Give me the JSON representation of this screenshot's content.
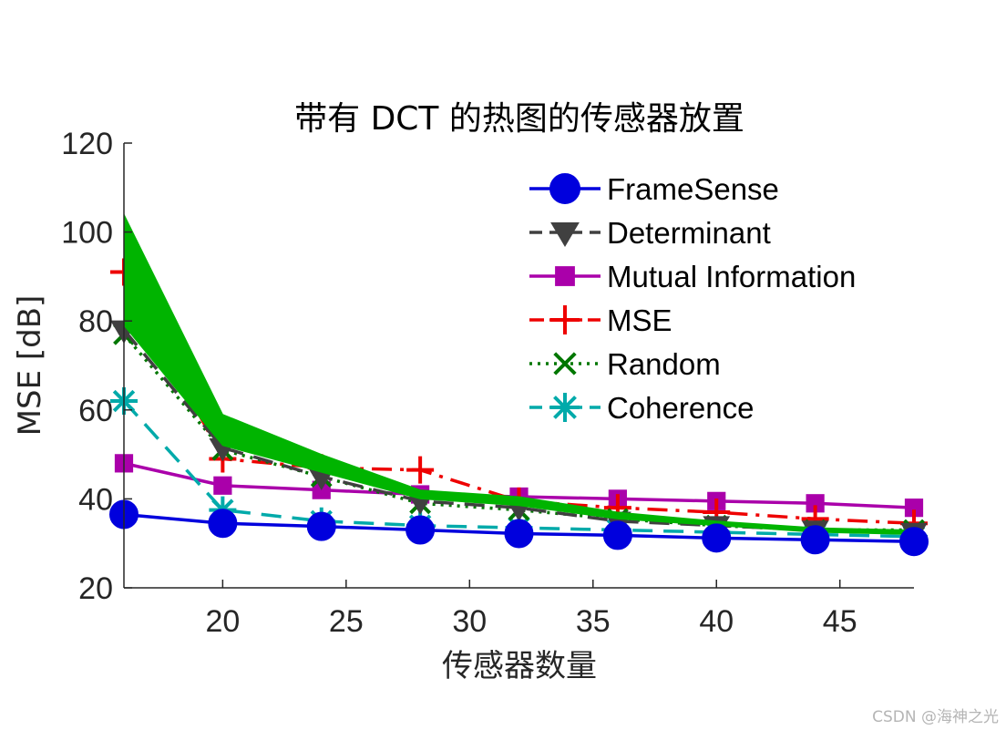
{
  "chart_data": {
    "type": "line",
    "title": "带有 DCT 的热图的传感器放置",
    "xlabel": "传感器数量",
    "ylabel": "MSE [dB]",
    "xlim": [
      16,
      48
    ],
    "ylim": [
      20,
      120
    ],
    "xticks": [
      20,
      25,
      30,
      35,
      40,
      45
    ],
    "yticks": [
      20,
      40,
      60,
      80,
      100,
      120
    ],
    "grid": false,
    "legend_position": "top-right",
    "x": [
      16,
      20,
      24,
      28,
      32,
      36,
      40,
      44,
      48
    ],
    "band": {
      "color": "#00b400",
      "upper": [
        104,
        59,
        50,
        42,
        40.5,
        37,
        35,
        33.5,
        33
      ],
      "lower": [
        79,
        52,
        46,
        40,
        38.5,
        35.5,
        34,
        32.5,
        32
      ]
    },
    "series": [
      {
        "name": "FrameSense",
        "color": "#0000dd",
        "dash": "solid",
        "marker": "circle",
        "values": [
          36.5,
          34.5,
          33.8,
          33,
          32.2,
          31.8,
          31.2,
          30.8,
          30.4
        ]
      },
      {
        "name": "Determinant",
        "color": "#404040",
        "dash": "dash",
        "marker": "triangle-down",
        "values": [
          78,
          51.5,
          45,
          39.5,
          38,
          35,
          34,
          33,
          32.5
        ]
      },
      {
        "name": "Mutual Information",
        "color": "#aa00aa",
        "dash": "solid",
        "marker": "square",
        "values": [
          48,
          43,
          42,
          41,
          40.5,
          40,
          39.5,
          39,
          38
        ]
      },
      {
        "name": "MSE",
        "color": "#ee0000",
        "dash": "dashdot",
        "marker": "plus",
        "values": [
          91,
          49,
          47,
          46.5,
          39.5,
          38,
          37,
          35.5,
          34.5
        ]
      },
      {
        "name": "Random",
        "color": "#007700",
        "dash": "dot",
        "marker": "x",
        "values": [
          77,
          51,
          45,
          39,
          37.5,
          35.5,
          34,
          33,
          33
        ]
      },
      {
        "name": "Coherence",
        "color": "#00aaaa",
        "dash": "dash",
        "marker": "asterisk",
        "values": [
          62,
          37.5,
          35,
          34,
          33.5,
          33,
          32.5,
          32,
          31.5
        ]
      }
    ]
  },
  "watermark": "CSDN @海神之光"
}
